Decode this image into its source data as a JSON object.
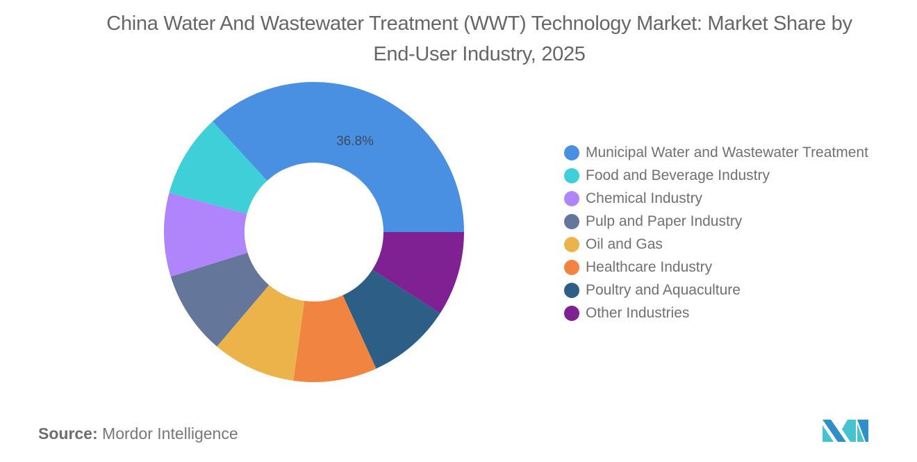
{
  "title": "China Water And Wastewater Treatment (WWT) Technology Market: Market Share by End-User Industry, 2025",
  "source": {
    "label": "Source:",
    "value": "Mordor Intelligence"
  },
  "logo": {
    "icon": "mordor-intelligence-logo-icon"
  },
  "chart_data": {
    "type": "pie",
    "subtype": "donut",
    "title": "China Water And Wastewater Treatment (WWT) Technology Market: Market Share by End-User Industry, 2025",
    "categories": [
      "Municipal Water and Wastewater Treatment",
      "Food and Beverage Industry",
      "Chemical Industry",
      "Pulp and Paper Industry",
      "Oil and Gas",
      "Healthcare Industry",
      "Poultry and Aquaculture",
      "Other Industries"
    ],
    "values": [
      36.8,
      9.0,
      9.0,
      9.0,
      9.0,
      9.0,
      9.1,
      9.1
    ],
    "colors": [
      "#4a90e2",
      "#3ecfd8",
      "#b084fa",
      "#647699",
      "#ebb34a",
      "#f08440",
      "#2d5f86",
      "#7f2192"
    ],
    "data_labels": [
      "36.8%",
      "",
      "",
      "",
      "",
      "",
      "",
      ""
    ],
    "legend_position": "right"
  },
  "legend": {
    "items": [
      {
        "label": "Municipal Water and Wastewater Treatment",
        "color": "#4a90e2"
      },
      {
        "label": "Food and Beverage Industry",
        "color": "#3ecfd8"
      },
      {
        "label": "Chemical Industry",
        "color": "#b084fa"
      },
      {
        "label": "Pulp and Paper Industry",
        "color": "#647699"
      },
      {
        "label": "Oil and Gas",
        "color": "#ebb34a"
      },
      {
        "label": "Healthcare Industry",
        "color": "#f08440"
      },
      {
        "label": "Poultry and Aquaculture",
        "color": "#2d5f86"
      },
      {
        "label": "Other Industries",
        "color": "#7f2192"
      }
    ]
  }
}
